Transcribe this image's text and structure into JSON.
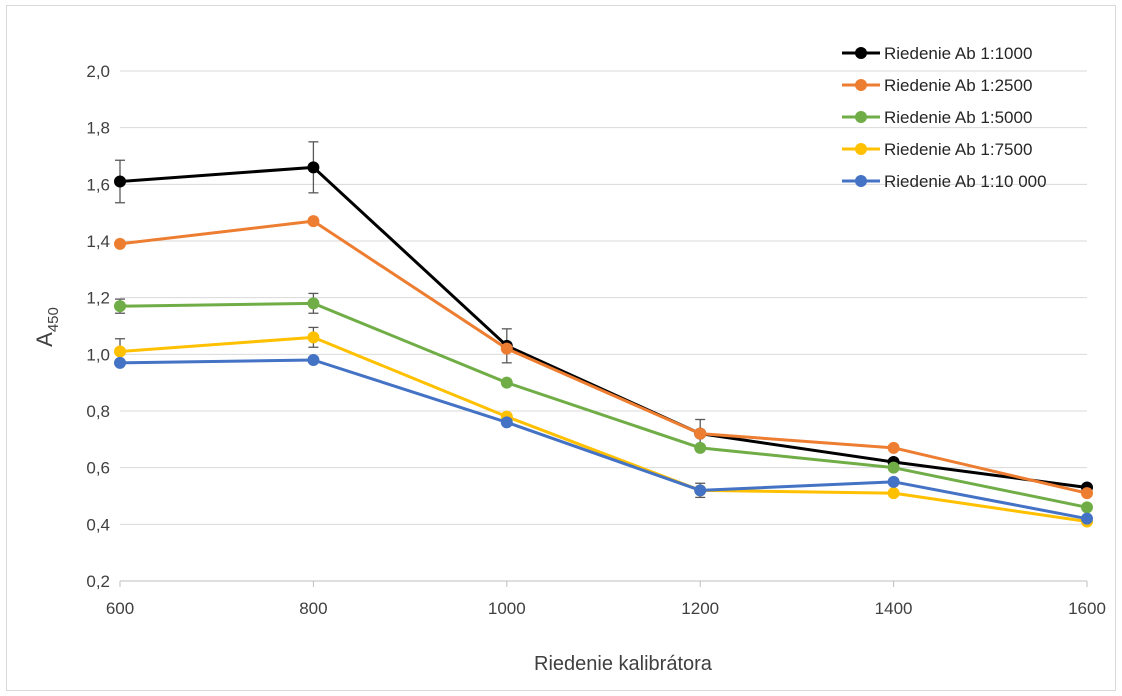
{
  "chart_data": {
    "type": "line",
    "title": "",
    "xlabel": "Riedenie kalibrátora",
    "ylabel_main": "A",
    "ylabel_sub": "450",
    "x": [
      600,
      800,
      1000,
      1200,
      1400,
      1600
    ],
    "x_tick_labels": [
      "600",
      "800",
      "1000",
      "1200",
      "1400",
      "1600"
    ],
    "ylim": [
      0.2,
      2.0
    ],
    "y_ticks": [
      0.2,
      0.4,
      0.6,
      0.8,
      1.0,
      1.2,
      1.4,
      1.6,
      1.8,
      2.0
    ],
    "y_tick_labels": [
      "0,2",
      "0,4",
      "0,6",
      "0,8",
      "1,0",
      "1,2",
      "1,4",
      "1,6",
      "1,8",
      "2,0"
    ],
    "grid": "horizontal",
    "legend_position": "top-right",
    "series": [
      {
        "name": "Riedenie Ab 1:1000",
        "color": "#000000",
        "values": [
          1.61,
          1.66,
          1.03,
          0.72,
          0.62,
          0.53
        ],
        "errors": [
          0.075,
          0.09,
          0.06,
          0.05,
          0.0,
          0.0
        ]
      },
      {
        "name": "Riedenie Ab 1:2500",
        "color": "#ED7D31",
        "values": [
          1.39,
          1.47,
          1.02,
          0.72,
          0.67,
          0.51
        ],
        "errors": [
          0.0,
          0.0,
          0.0,
          0.0,
          0.0,
          0.0
        ]
      },
      {
        "name": "Riedenie Ab 1:5000",
        "color": "#70AD47",
        "values": [
          1.17,
          1.18,
          0.9,
          0.67,
          0.6,
          0.46
        ],
        "errors": [
          0.025,
          0.035,
          0.0,
          0.0,
          0.0,
          0.0
        ]
      },
      {
        "name": "Riedenie Ab 1:7500",
        "color": "#FFC000",
        "values": [
          1.01,
          1.06,
          0.78,
          0.52,
          0.51,
          0.41
        ],
        "errors": [
          0.045,
          0.035,
          0.0,
          0.0,
          0.0,
          0.0
        ]
      },
      {
        "name": "Riedenie Ab 1:10 000",
        "color": "#4472C4",
        "values": [
          0.97,
          0.98,
          0.76,
          0.52,
          0.55,
          0.42
        ],
        "errors": [
          0.0,
          0.0,
          0.0,
          0.025,
          0.0,
          0.0
        ]
      }
    ]
  }
}
